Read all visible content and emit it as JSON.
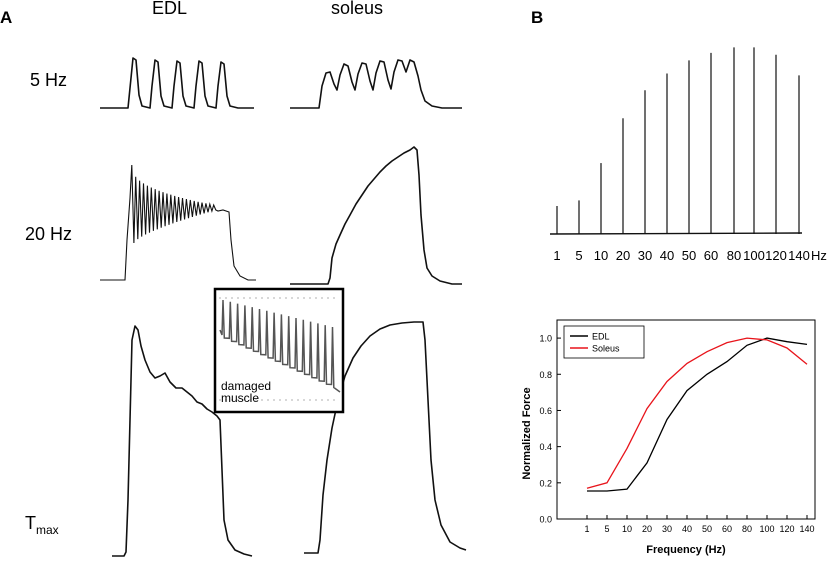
{
  "panel_a": {
    "letter": "A",
    "columns": [
      "EDL",
      "soleus"
    ],
    "rows": [
      "5 Hz",
      "20 Hz"
    ],
    "tmax_main": "T",
    "tmax_sub": "max",
    "inset_label_1": "damaged",
    "inset_label_2": "muscle"
  },
  "panel_b": {
    "letter": "B"
  },
  "chart_data": [
    {
      "type": "bar",
      "title": "",
      "xlabel": "",
      "ylabel": "",
      "categories": [
        "1",
        "5",
        "10",
        "20",
        "30",
        "40",
        "50",
        "60",
        "80",
        "100",
        "120",
        "140"
      ],
      "values": [
        0.15,
        0.18,
        0.38,
        0.62,
        0.77,
        0.86,
        0.93,
        0.97,
        1.0,
        1.0,
        0.96,
        0.85
      ],
      "unit_label": "Hz",
      "ylim": [
        0,
        1.05
      ]
    },
    {
      "type": "line",
      "title": "",
      "xlabel": "Frequency (Hz)",
      "ylabel": "Normalized Force",
      "categories": [
        "1",
        "5",
        "10",
        "20",
        "30",
        "40",
        "50",
        "60",
        "80",
        "100",
        "120",
        "140"
      ],
      "ylim": [
        0.0,
        1.1
      ],
      "yticks": [
        "0.0",
        "0.2",
        "0.4",
        "0.6",
        "0.8",
        "1.0"
      ],
      "legend_position": "top-left",
      "series": [
        {
          "name": "EDL",
          "color": "#000000",
          "values": [
            0.155,
            0.155,
            0.165,
            0.31,
            0.55,
            0.71,
            0.8,
            0.87,
            0.96,
            1.0,
            0.98,
            0.965
          ]
        },
        {
          "name": "Soleus",
          "color": "#e8141b",
          "values": [
            0.17,
            0.2,
            0.39,
            0.61,
            0.76,
            0.86,
            0.925,
            0.975,
            1.0,
            0.99,
            0.945,
            0.855
          ]
        }
      ]
    }
  ]
}
